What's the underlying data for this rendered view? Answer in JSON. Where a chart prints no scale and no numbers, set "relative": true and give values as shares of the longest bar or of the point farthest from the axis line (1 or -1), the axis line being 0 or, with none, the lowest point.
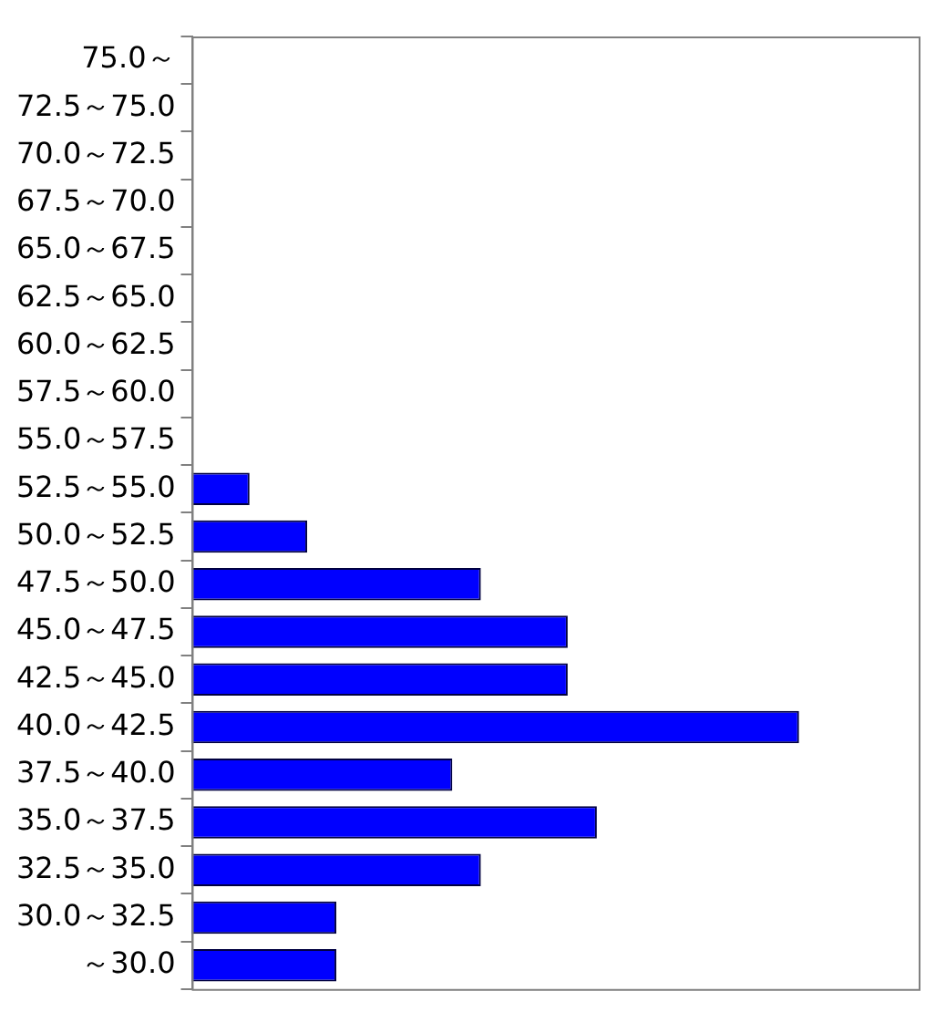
{
  "chart_data": {
    "type": "bar",
    "orientation": "horizontal",
    "relative": true,
    "color": "#0000ff",
    "grid": false,
    "legend": false,
    "categories": [
      "75.0～",
      "72.5～75.0",
      "70.0～72.5",
      "67.5～70.0",
      "65.0～67.5",
      "62.5～65.0",
      "60.0～62.5",
      "57.5～60.0",
      "55.0～57.5",
      "52.5～55.0",
      "50.0～52.5",
      "47.5～50.0",
      "45.0～47.5",
      "42.5～45.0",
      "40.0～42.5",
      "37.5～40.0",
      "35.0～37.5",
      "32.5～35.0",
      "30.0～32.5",
      "～30.0"
    ],
    "values": [
      0,
      0,
      0,
      0,
      0,
      0,
      0,
      0,
      0,
      0.095,
      0.19,
      0.476,
      0.619,
      0.619,
      1,
      0.429,
      0.667,
      0.476,
      0.238,
      0.238
    ]
  }
}
